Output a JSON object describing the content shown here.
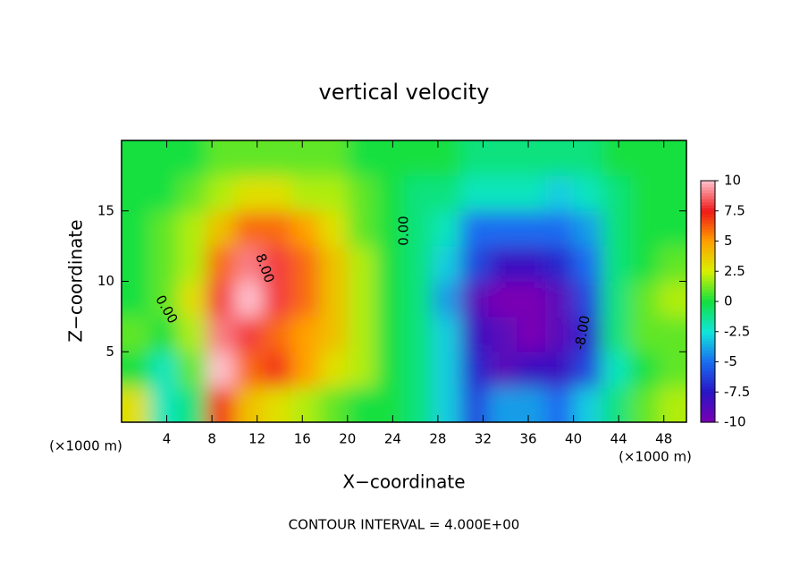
{
  "chart_data": {
    "type": "heatmap",
    "title": "vertical velocity",
    "xlabel": "X−coordinate",
    "ylabel": "Z−coordinate",
    "x_unit": "(×1000 m)",
    "note": "CONTOUR INTERVAL = 4.000E+00",
    "xlim": [
      0,
      50
    ],
    "ylim": [
      0,
      20
    ],
    "xticks": [
      4,
      8,
      12,
      16,
      20,
      24,
      28,
      32,
      36,
      40,
      44,
      48
    ],
    "yticks": [
      5,
      10,
      15
    ],
    "x": [
      1.25,
      3.75,
      6.25,
      8.75,
      11.25,
      13.75,
      16.25,
      18.75,
      21.25,
      23.75,
      26.25,
      28.75,
      31.25,
      33.75,
      36.25,
      38.75,
      41.25,
      43.75,
      46.25,
      48.75
    ],
    "z": [
      1.25,
      3.75,
      6.25,
      8.75,
      11.25,
      13.75,
      16.25,
      18.75
    ],
    "values": [
      [
        3,
        -2,
        -1,
        7,
        4,
        3,
        2,
        1,
        0,
        0,
        -1,
        -3,
        -6,
        -4,
        -4,
        -5,
        -3,
        -1,
        1,
        2
      ],
      [
        0,
        -2,
        1,
        10,
        6,
        7,
        5,
        3,
        2,
        0,
        -1,
        -3,
        -7,
        -9,
        -8,
        -8,
        -6,
        -2,
        0,
        1
      ],
      [
        1,
        0,
        2,
        9,
        8,
        6,
        5,
        4,
        2,
        0,
        -1,
        -3,
        -8,
        -9,
        -10,
        -9,
        -7,
        -1,
        1,
        1
      ],
      [
        0,
        1,
        3,
        8,
        10,
        8,
        6,
        4,
        2,
        0,
        -1,
        -4,
        -9,
        -10,
        -10,
        -9,
        -6,
        -1,
        1,
        2
      ],
      [
        0,
        1,
        2,
        6,
        9,
        8,
        6,
        4,
        2,
        0,
        -1,
        -3,
        -6,
        -8,
        -8,
        -7,
        -5,
        -1,
        0,
        1
      ],
      [
        0,
        1,
        2,
        4,
        6,
        6,
        5,
        3,
        1,
        0,
        -1,
        -2,
        -5,
        -5,
        -5,
        -5,
        -4,
        -1,
        0,
        0
      ],
      [
        0,
        0,
        1,
        2,
        3,
        3,
        2,
        2,
        1,
        0,
        -1,
        -1,
        -2,
        -2,
        -2,
        -3,
        -2,
        -1,
        0,
        0
      ],
      [
        0,
        0,
        0,
        1,
        1,
        1,
        1,
        1,
        0,
        0,
        0,
        0,
        -1,
        -1,
        -1,
        -1,
        -1,
        0,
        0,
        0
      ]
    ],
    "clim": [
      -10,
      10
    ],
    "cticks": [
      -10,
      -7.5,
      -5,
      -2.5,
      0,
      2.5,
      5,
      7.5,
      10
    ],
    "colors": [
      "#7a00b4",
      "#2a14c4",
      "#1a6cf0",
      "#10e6dc",
      "#12e040",
      "#d8f000",
      "#ffa000",
      "#f01818",
      "#ffc0cc"
    ],
    "annotations": [
      "0.00",
      "0.00",
      "8.00",
      "-8.00"
    ]
  }
}
